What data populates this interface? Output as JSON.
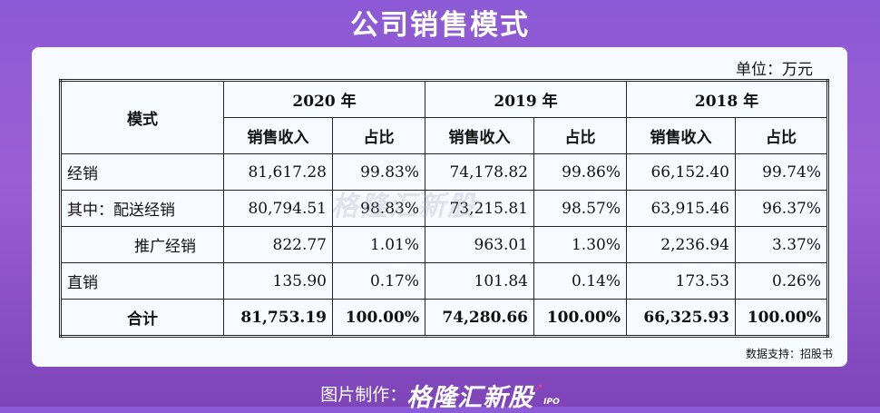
{
  "title": "公司销售模式",
  "unit": "单位：万元",
  "table": {
    "mode_header": "模式",
    "years": [
      "2020 年",
      "2019 年",
      "2018 年"
    ],
    "sub_revenue": "销售收入",
    "sub_ratio": "占比",
    "rows": [
      {
        "label": "经销",
        "values": [
          "81,617.28",
          "99.83%",
          "74,178.82",
          "99.86%",
          "66,152.40",
          "99.74%"
        ]
      },
      {
        "label": "其中：配送经销",
        "values": [
          "80,794.51",
          "98.83%",
          "73,215.81",
          "98.57%",
          "63,915.46",
          "96.37%"
        ]
      },
      {
        "label": "推广经销",
        "values": [
          "822.77",
          "1.01%",
          "963.01",
          "1.30%",
          "2,236.94",
          "3.37%"
        ]
      },
      {
        "label": "直销",
        "values": [
          "135.90",
          "0.17%",
          "101.84",
          "0.14%",
          "173.53",
          "0.26%"
        ]
      },
      {
        "label": "合计",
        "values": [
          "81,753.19",
          "100.00%",
          "74,280.66",
          "100.00%",
          "66,325.93",
          "100.00%"
        ]
      }
    ]
  },
  "source": "数据支持：招股书",
  "watermark": "格隆汇新股",
  "footer": {
    "prefix": "图片制作：",
    "brand": "格隆汇新股",
    "brand_sub": "IPO"
  }
}
